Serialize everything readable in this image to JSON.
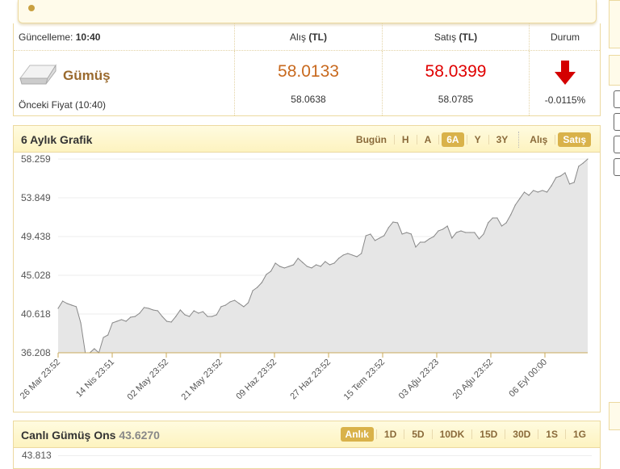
{
  "price_table": {
    "updated_label": "Güncelleme:",
    "updated_time": "10:40",
    "col_buy": "Alış",
    "col_sell": "Satış",
    "unit": "(TL)",
    "col_status": "Durum",
    "name": "Gümüş",
    "buy": "58.0133",
    "sell": "58.0399",
    "prev_label": "Önceki Fiyat (10:40)",
    "prev_buy": "58.0638",
    "prev_sell": "58.0785",
    "change": "-0.0115%",
    "status_icon": "arrow-down-icon",
    "buy_color": "#c8691e",
    "sell_color": "#e00000"
  },
  "chart_panel": {
    "title": "6 Aylık Grafik",
    "ranges": [
      "Bugün",
      "H",
      "A",
      "6A",
      "Y",
      "3Y"
    ],
    "active_range": "6A",
    "sides": [
      "Alış",
      "Satış"
    ],
    "active_side": "Satış"
  },
  "chart_data": {
    "type": "area",
    "ylim": [
      36.208,
      58.259
    ],
    "yticks": [
      "58.259",
      "53.849",
      "49.438",
      "45.028",
      "40.618",
      "36.208"
    ],
    "xticks": [
      "26 Mar 23:52",
      "14 Nis 23:51",
      "02 May 23:52",
      "21 May 23:52",
      "09 Haz 23:52",
      "27 Haz 23:52",
      "15 Tem 23:52",
      "03 Ağu 23:23",
      "20 Ağu 23:52",
      "06 Eyl 00:00"
    ],
    "grid": true,
    "values": [
      41.26,
      42.09,
      41.81,
      41.63,
      41.45,
      39.61,
      36.21,
      36.21,
      36.67,
      36.21,
      37.95,
      38.23,
      39.61,
      39.79,
      39.98,
      39.79,
      40.25,
      40.34,
      40.71,
      41.36,
      41.26,
      41.08,
      40.99,
      40.34,
      39.79,
      39.7,
      40.34,
      41.08,
      40.53,
      40.34,
      40.99,
      40.71,
      40.89,
      40.34,
      40.34,
      40.53,
      41.45,
      41.63,
      42.0,
      42.18,
      41.81,
      41.45,
      41.9,
      43.28,
      43.65,
      44.2,
      45.12,
      45.49,
      46.41,
      46.04,
      45.86,
      46.04,
      46.22,
      46.96,
      46.5,
      46.04,
      45.86,
      46.22,
      46.04,
      46.59,
      46.22,
      46.41,
      46.96,
      47.33,
      47.51,
      47.33,
      47.14,
      47.51,
      49.53,
      49.72,
      48.98,
      49.26,
      49.53,
      50.45,
      51.09,
      51.0,
      49.72,
      49.9,
      49.72,
      48.24,
      48.8,
      48.8,
      49.17,
      49.44,
      50.08,
      50.27,
      50.63,
      49.26,
      49.9,
      50.08,
      49.9,
      49.9,
      49.9,
      49.17,
      49.72,
      51.0,
      51.55,
      51.55,
      50.63,
      51.0,
      51.92,
      53.02,
      53.76,
      54.49,
      54.13,
      54.68,
      54.49,
      54.68,
      54.49,
      55.23,
      56.15,
      56.33,
      56.7,
      55.41,
      55.6,
      57.43,
      57.8,
      58.26
    ],
    "line_color": "#888888",
    "fill_color": "#e6e6e6"
  },
  "live_panel": {
    "title": "Canlı Gümüş Ons",
    "value": "43.6270",
    "ranges": [
      "Anlık",
      "1D",
      "5D",
      "10DK",
      "15D",
      "30D",
      "1S",
      "1G"
    ],
    "active_range": "Anlık",
    "first_ytick": "43.813"
  }
}
